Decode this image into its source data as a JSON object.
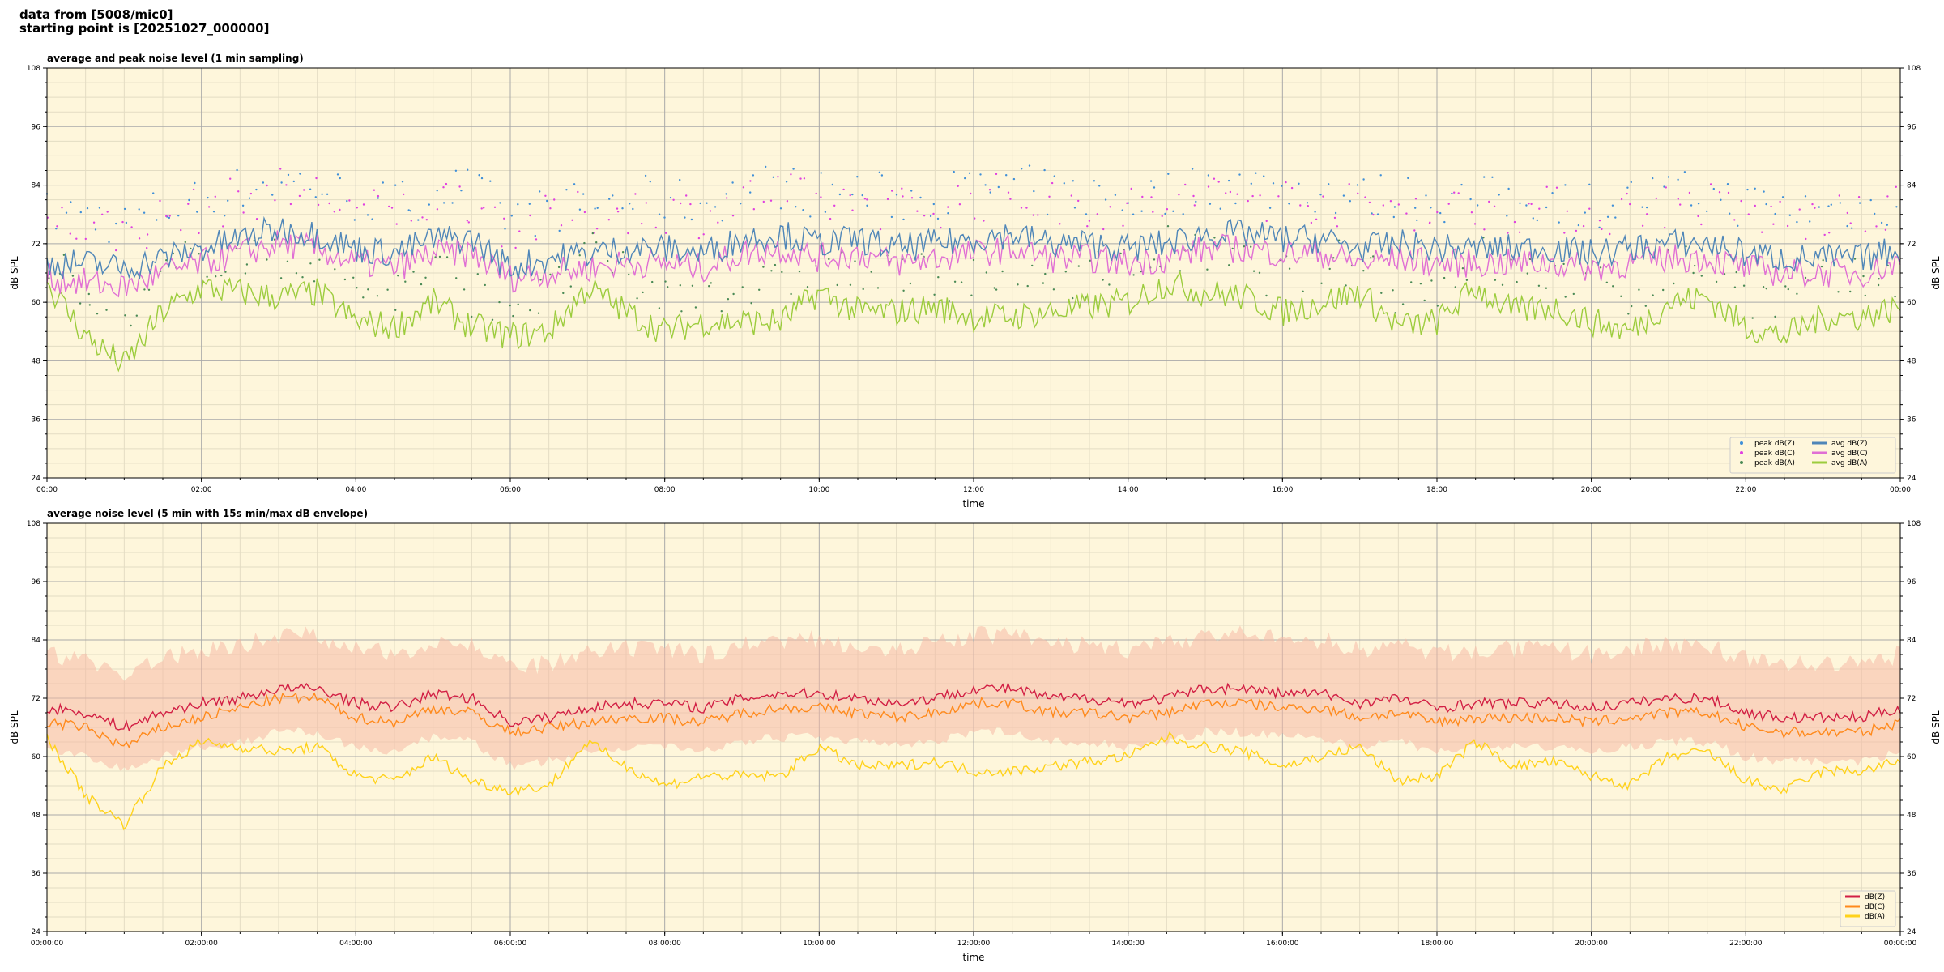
{
  "header": {
    "line1": "data from [5008/mic0]",
    "line2": "starting point is [20251027_000000]"
  },
  "colors": {
    "plot_bg": "#fef6db",
    "grid_major": "#a9a9a9",
    "grid_minor": "#e3dcc3",
    "avg_dBZ": "#4f86b8",
    "avg_dBC": "#e06fd4",
    "avg_dBA": "#9ccc3d",
    "peak_dBZ": "#3f8fd8",
    "peak_dBC": "#e040e0",
    "peak_dBA": "#4a8a55",
    "dBZ": "#d21f44",
    "dBC": "#ff8a1c",
    "dBA": "#ffd21a",
    "envelope": "#f6b9a5"
  },
  "chart_data": [
    {
      "type": "line",
      "title": "average and peak noise level (1 min sampling)",
      "xlabel": "time",
      "ylabel": "dB SPL",
      "ylim": [
        24,
        108
      ],
      "yticks": [
        "24",
        "36",
        "48",
        "60",
        "72",
        "84",
        "96",
        "108"
      ],
      "xticks": [
        "00:00",
        "02:00",
        "04:00",
        "06:00",
        "08:00",
        "10:00",
        "12:00",
        "14:00",
        "16:00",
        "18:00",
        "20:00",
        "22:00",
        "00:00"
      ],
      "xrange_hours": [
        0,
        24
      ],
      "grid": true,
      "legend_position": "lower-right",
      "legend": [
        {
          "label": "peak dB(Z)",
          "kind": "marker",
          "color_key": "peak_dBZ"
        },
        {
          "label": "peak dB(C)",
          "kind": "marker",
          "color_key": "peak_dBC"
        },
        {
          "label": "peak dB(A)",
          "kind": "marker",
          "color_key": "peak_dBA"
        },
        {
          "label": "avg dB(Z)",
          "kind": "line",
          "color_key": "avg_dBZ"
        },
        {
          "label": "avg dB(C)",
          "kind": "line",
          "color_key": "avg_dBC"
        },
        {
          "label": "avg dB(A)",
          "kind": "line",
          "color_key": "avg_dBA"
        }
      ],
      "x": [
        0,
        0.5,
        1,
        1.5,
        2,
        2.5,
        3,
        3.5,
        4,
        4.5,
        5,
        5.5,
        6,
        6.5,
        7,
        7.5,
        8,
        8.5,
        9,
        9.5,
        10,
        10.5,
        11,
        11.5,
        12,
        12.5,
        13,
        13.5,
        14,
        14.5,
        15,
        15.5,
        16,
        16.5,
        17,
        17.5,
        18,
        18.5,
        19,
        19.5,
        20,
        20.5,
        21,
        21.5,
        22,
        22.5,
        23,
        23.5,
        24
      ],
      "series": [
        {
          "name": "avg dB(Z)",
          "color_key": "avg_dBZ",
          "values": [
            68,
            68,
            67,
            69,
            71,
            73,
            75,
            74,
            71,
            70,
            73,
            73,
            67,
            69,
            70,
            71,
            71,
            70,
            73,
            74,
            72,
            73,
            71,
            72,
            73,
            74,
            72,
            72,
            71,
            72,
            74,
            74,
            73,
            73,
            71,
            72,
            71,
            71,
            71,
            71,
            70,
            71,
            72,
            72,
            70,
            69,
            69,
            69,
            71
          ]
        },
        {
          "name": "avg dB(C)",
          "color_key": "avg_dBC",
          "values": [
            65,
            64,
            63,
            66,
            68,
            70,
            72,
            71,
            68,
            67,
            70,
            70,
            65,
            66,
            67,
            68,
            68,
            67,
            70,
            71,
            69,
            70,
            68,
            69,
            70,
            71,
            69,
            69,
            68,
            69,
            71,
            71,
            70,
            70,
            68,
            69,
            68,
            68,
            68,
            68,
            67,
            68,
            69,
            69,
            67,
            66,
            66,
            66,
            68
          ]
        },
        {
          "name": "avg dB(A)",
          "color_key": "avg_dBA",
          "values": [
            64,
            53,
            47,
            58,
            63,
            62,
            61,
            62,
            56,
            55,
            60,
            55,
            53,
            54,
            63,
            58,
            54,
            56,
            56,
            56,
            62,
            58,
            58,
            59,
            57,
            57,
            58,
            59,
            60,
            64,
            62,
            61,
            58,
            60,
            62,
            55,
            56,
            63,
            58,
            59,
            56,
            54,
            60,
            61,
            55,
            53,
            57,
            57,
            59
          ]
        }
      ],
      "peak_series": [
        {
          "name": "peak dB(Z)",
          "color_key": "peak_dBZ",
          "values": [
            78,
            78,
            76,
            79,
            81,
            83,
            85,
            84,
            81,
            80,
            83,
            83,
            77,
            79,
            80,
            81,
            81,
            80,
            83,
            84,
            82,
            83,
            81,
            82,
            83,
            84,
            82,
            82,
            81,
            82,
            84,
            84,
            83,
            83,
            81,
            82,
            81,
            81,
            81,
            81,
            80,
            81,
            82,
            82,
            80,
            79,
            79,
            79,
            81
          ]
        },
        {
          "name": "peak dB(C)",
          "color_key": "peak_dBC",
          "values": [
            76,
            76,
            74,
            77,
            79,
            81,
            83,
            82,
            79,
            78,
            81,
            81,
            75,
            77,
            78,
            79,
            79,
            78,
            81,
            82,
            80,
            81,
            79,
            80,
            81,
            82,
            80,
            80,
            79,
            80,
            82,
            82,
            81,
            81,
            79,
            80,
            79,
            79,
            79,
            79,
            78,
            79,
            80,
            80,
            78,
            77,
            77,
            77,
            79
          ]
        },
        {
          "name": "peak dB(A)",
          "color_key": "peak_dBA",
          "values": [
            70,
            60,
            53,
            65,
            70,
            69,
            68,
            69,
            63,
            62,
            67,
            62,
            60,
            61,
            70,
            65,
            61,
            63,
            63,
            63,
            69,
            65,
            65,
            66,
            64,
            64,
            65,
            66,
            67,
            71,
            69,
            68,
            65,
            67,
            69,
            62,
            63,
            70,
            65,
            66,
            63,
            61,
            67,
            68,
            62,
            60,
            64,
            64,
            66
          ]
        }
      ]
    },
    {
      "type": "line",
      "title": "average noise level (5 min with 15s min/max dB envelope)",
      "xlabel": "time",
      "ylabel": "dB SPL",
      "ylim": [
        24,
        108
      ],
      "yticks": [
        "24",
        "36",
        "48",
        "60",
        "72",
        "84",
        "96",
        "108"
      ],
      "xticks": [
        "00:00:00",
        "02:00:00",
        "04:00:00",
        "06:00:00",
        "08:00:00",
        "10:00:00",
        "12:00:00",
        "14:00:00",
        "16:00:00",
        "18:00:00",
        "20:00:00",
        "22:00:00",
        "00:00:00"
      ],
      "xrange_hours": [
        0,
        24
      ],
      "grid": true,
      "legend_position": "lower-right",
      "legend": [
        {
          "label": "dB(Z)",
          "kind": "line",
          "color_key": "dBZ"
        },
        {
          "label": "dB(C)",
          "kind": "line",
          "color_key": "dBC"
        },
        {
          "label": "dB(A)",
          "kind": "line",
          "color_key": "dBA"
        }
      ],
      "x": [
        0,
        0.5,
        1,
        1.5,
        2,
        2.5,
        3,
        3.5,
        4,
        4.5,
        5,
        5.5,
        6,
        6.5,
        7,
        7.5,
        8,
        8.5,
        9,
        9.5,
        10,
        10.5,
        11,
        11.5,
        12,
        12.5,
        13,
        13.5,
        14,
        14.5,
        15,
        15.5,
        16,
        16.5,
        17,
        17.5,
        18,
        18.5,
        19,
        19.5,
        20,
        20.5,
        21,
        21.5,
        22,
        22.5,
        23,
        23.5,
        24
      ],
      "series": [
        {
          "name": "dB(Z)",
          "color_key": "dBZ",
          "values": [
            70,
            69,
            66,
            69,
            71,
            72,
            74,
            74,
            71,
            70,
            73,
            72,
            67,
            68,
            70,
            71,
            71,
            70,
            72,
            73,
            73,
            72,
            71,
            72,
            74,
            74,
            72,
            72,
            71,
            72,
            74,
            74,
            73,
            73,
            71,
            72,
            70,
            71,
            71,
            71,
            70,
            71,
            72,
            72,
            69,
            68,
            68,
            68,
            70
          ]
        },
        {
          "name": "dB(C)",
          "color_key": "dBC",
          "values": [
            67,
            66,
            62,
            66,
            68,
            70,
            72,
            72,
            68,
            67,
            70,
            69,
            65,
            66,
            67,
            68,
            68,
            67,
            69,
            70,
            70,
            69,
            68,
            69,
            71,
            71,
            69,
            69,
            68,
            69,
            71,
            71,
            70,
            70,
            68,
            69,
            67,
            68,
            68,
            68,
            67,
            68,
            69,
            69,
            66,
            65,
            65,
            65,
            67
          ]
        },
        {
          "name": "dB(A)",
          "color_key": "dBA",
          "values": [
            64,
            52,
            46,
            58,
            63,
            62,
            61,
            62,
            56,
            55,
            60,
            55,
            53,
            54,
            63,
            58,
            54,
            56,
            56,
            56,
            62,
            58,
            58,
            59,
            57,
            57,
            58,
            59,
            60,
            64,
            62,
            61,
            58,
            60,
            62,
            55,
            56,
            63,
            58,
            59,
            56,
            54,
            60,
            61,
            55,
            53,
            57,
            57,
            59
          ]
        }
      ],
      "envelope": {
        "name": "dB min/max envelope",
        "color_key": "envelope",
        "min": [
          62,
          61,
          58,
          61,
          63,
          64,
          66,
          66,
          63,
          62,
          65,
          64,
          59,
          60,
          62,
          63,
          63,
          62,
          64,
          65,
          65,
          64,
          63,
          64,
          66,
          66,
          64,
          64,
          63,
          64,
          66,
          66,
          65,
          65,
          63,
          64,
          62,
          63,
          63,
          63,
          62,
          63,
          64,
          64,
          61,
          60,
          60,
          60,
          62
        ],
        "max": [
          81,
          80,
          77,
          80,
          82,
          83,
          85,
          85,
          82,
          81,
          84,
          83,
          78,
          79,
          81,
          82,
          82,
          81,
          83,
          84,
          84,
          83,
          82,
          83,
          85,
          85,
          83,
          83,
          82,
          83,
          85,
          85,
          84,
          84,
          82,
          83,
          81,
          82,
          82,
          82,
          81,
          82,
          83,
          83,
          80,
          79,
          79,
          79,
          81
        ]
      }
    }
  ]
}
